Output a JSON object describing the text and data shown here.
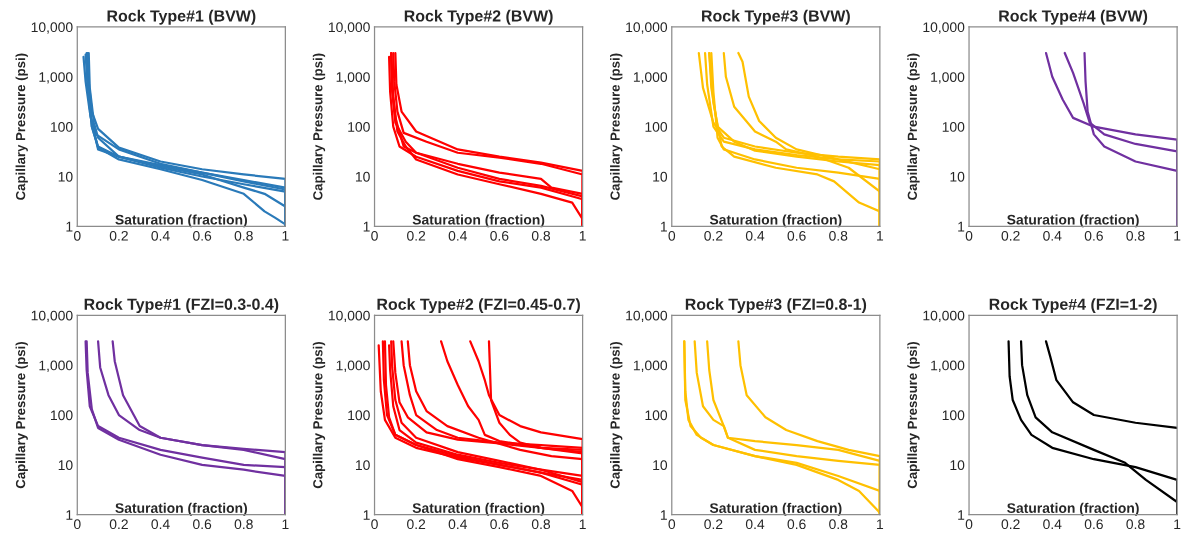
{
  "chart_data": [
    {
      "type": "line",
      "title": "Rock Type#1 (BVW)",
      "xlabel": "Saturation (fraction)",
      "ylabel": "Capillary Pressure (psi)",
      "log": "y",
      "xlim": [
        0,
        1
      ],
      "ylim": [
        1,
        10000
      ],
      "xticks": [
        0,
        0.2,
        0.4,
        0.6,
        0.8,
        1
      ],
      "yticks": [
        {
          "value": 1,
          "label": "1"
        },
        {
          "value": 10,
          "label": "10"
        },
        {
          "value": 100,
          "label": "100"
        },
        {
          "value": 1000,
          "label": "1,000"
        },
        {
          "value": 10000,
          "label": "10,000"
        }
      ],
      "series": [
        {
          "color": "#2a7ab9",
          "x": [
            0.05,
            0.055,
            0.07,
            0.1,
            0.2,
            0.4,
            0.6,
            0.8,
            1,
            1
          ],
          "values": [
            3000,
            800,
            200,
            90,
            38,
            20,
            14,
            11,
            9,
            1
          ]
        },
        {
          "color": "#2a7ab9",
          "x": [
            0.045,
            0.05,
            0.065,
            0.09,
            0.2,
            0.4,
            0.6,
            0.8,
            1,
            1
          ],
          "values": [
            3000,
            700,
            150,
            70,
            35,
            18,
            12,
            8.5,
            6,
            1
          ]
        },
        {
          "color": "#2a7ab9",
          "x": [
            0.055,
            0.06,
            0.08,
            0.1,
            0.2,
            0.4,
            0.6,
            0.8,
            1,
            1
          ],
          "values": [
            3000,
            600,
            120,
            60,
            25,
            17,
            12,
            8,
            5.5,
            1
          ]
        },
        {
          "color": "#2a7ab9",
          "x": [
            0.05,
            0.055,
            0.07,
            0.1,
            0.2,
            0.4,
            0.6,
            0.8,
            1,
            1
          ],
          "values": [
            3000,
            500,
            100,
            40,
            25,
            15,
            10,
            7,
            5,
            1
          ]
        },
        {
          "color": "#2a7ab9",
          "x": [
            0.03,
            0.04,
            0.06,
            0.1,
            0.2,
            0.4,
            0.6,
            0.8,
            0.9,
            1,
            1
          ],
          "values": [
            2500,
            800,
            200,
            35,
            25,
            16,
            11,
            6,
            4.5,
            2.5,
            1
          ]
        },
        {
          "color": "#2a7ab9",
          "x": [
            0.04,
            0.05,
            0.07,
            0.1,
            0.2,
            0.4,
            0.6,
            0.8,
            0.9,
            0.95,
            1
          ],
          "values": [
            2800,
            600,
            100,
            38,
            22,
            14,
            8.5,
            4.5,
            2,
            1.5,
            1.1
          ]
        }
      ]
    },
    {
      "type": "line",
      "title": "Rock Type#2 (BVW)",
      "xlabel": "Saturation (fraction)",
      "ylabel": "Capillary Pressure (psi)",
      "log": "y",
      "xlim": [
        0,
        1
      ],
      "ylim": [
        1,
        10000
      ],
      "xticks": [
        0,
        0.2,
        0.4,
        0.6,
        0.8,
        1
      ],
      "yticks": [
        {
          "value": 1,
          "label": "1"
        },
        {
          "value": 10,
          "label": "10"
        },
        {
          "value": 100,
          "label": "100"
        },
        {
          "value": 1000,
          "label": "1,000"
        },
        {
          "value": 10000,
          "label": "10,000"
        }
      ],
      "series": [
        {
          "color": "#ff0000",
          "x": [
            0.1,
            0.105,
            0.13,
            0.2,
            0.4,
            0.6,
            0.8,
            1,
            1
          ],
          "values": [
            3000,
            700,
            200,
            80,
            35,
            25,
            19,
            13,
            1
          ]
        },
        {
          "color": "#ff0000",
          "x": [
            0.09,
            0.095,
            0.11,
            0.14,
            0.25,
            0.4,
            0.6,
            0.8,
            1,
            1
          ],
          "values": [
            3000,
            800,
            200,
            75,
            50,
            30,
            24,
            18,
            11,
            1
          ]
        },
        {
          "color": "#ff0000",
          "x": [
            0.08,
            0.085,
            0.1,
            0.14,
            0.2,
            0.4,
            0.6,
            0.8,
            0.85,
            1,
            1
          ],
          "values": [
            3000,
            600,
            150,
            40,
            30,
            18,
            12,
            9,
            6,
            4.5,
            1
          ]
        },
        {
          "color": "#ff0000",
          "x": [
            0.08,
            0.085,
            0.1,
            0.15,
            0.2,
            0.4,
            0.6,
            0.8,
            1,
            1
          ],
          "values": [
            3000,
            500,
            120,
            50,
            30,
            15,
            9,
            6.5,
            4,
            1
          ]
        },
        {
          "color": "#ff0000",
          "x": [
            0.07,
            0.075,
            0.09,
            0.12,
            0.2,
            0.4,
            0.6,
            0.8,
            1,
            1
          ],
          "values": [
            2500,
            500,
            100,
            40,
            25,
            13,
            8,
            6,
            3.5,
            1
          ]
        },
        {
          "color": "#ff0000",
          "x": [
            0.08,
            0.09,
            0.11,
            0.15,
            0.2,
            0.4,
            0.6,
            0.8,
            0.95,
            1,
            1
          ],
          "values": [
            2800,
            400,
            80,
            40,
            22,
            11,
            7,
            4.5,
            3,
            1.4,
            1
          ]
        }
      ]
    },
    {
      "type": "line",
      "title": "Rock Type#3 (BVW)",
      "xlabel": "Saturation (fraction)",
      "ylabel": "Capillary Pressure (psi)",
      "log": "y",
      "xlim": [
        0,
        1
      ],
      "ylim": [
        1,
        10000
      ],
      "xticks": [
        0,
        0.2,
        0.4,
        0.6,
        0.8,
        1
      ],
      "yticks": [
        {
          "value": 1,
          "label": "1"
        },
        {
          "value": 10,
          "label": "10"
        },
        {
          "value": 100,
          "label": "100"
        },
        {
          "value": 1000,
          "label": "1,000"
        },
        {
          "value": 10000,
          "label": "10,000"
        }
      ],
      "series": [
        {
          "color": "#ffc000",
          "x": [
            0.13,
            0.15,
            0.2,
            0.25,
            0.4,
            0.6,
            0.8,
            1,
            1
          ],
          "values": [
            3000,
            600,
            120,
            60,
            40,
            30,
            25,
            22,
            1
          ]
        },
        {
          "color": "#ffc000",
          "x": [
            0.16,
            0.17,
            0.2,
            0.25,
            0.4,
            0.6,
            0.8,
            1,
            1
          ],
          "values": [
            3000,
            700,
            100,
            50,
            35,
            27,
            22,
            20,
            1
          ]
        },
        {
          "color": "#ffc000",
          "x": [
            0.18,
            0.19,
            0.22,
            0.3,
            0.4,
            0.6,
            0.8,
            1,
            1
          ],
          "values": [
            3000,
            600,
            100,
            50,
            33,
            25,
            20,
            17,
            1
          ]
        },
        {
          "color": "#ffc000",
          "x": [
            0.19,
            0.2,
            0.22,
            0.25,
            0.3,
            0.4,
            0.6,
            0.8,
            1,
            1
          ],
          "values": [
            3000,
            500,
            60,
            35,
            30,
            22,
            15,
            12,
            9,
            1
          ]
        },
        {
          "color": "#ffc000",
          "x": [
            0.25,
            0.26,
            0.3,
            0.4,
            0.5,
            0.55,
            0.7,
            0.85,
            1,
            1
          ],
          "values": [
            3000,
            1000,
            250,
            80,
            50,
            35,
            25,
            15,
            5,
            1
          ]
        },
        {
          "color": "#ffc000",
          "x": [
            0.32,
            0.34,
            0.37,
            0.42,
            0.5,
            0.6,
            0.8,
            1,
            1
          ],
          "values": [
            3000,
            2000,
            400,
            130,
            60,
            35,
            22,
            14,
            1
          ]
        },
        {
          "color": "#ffc000",
          "x": [
            0.18,
            0.2,
            0.24,
            0.3,
            0.5,
            0.7,
            0.78,
            0.9,
            1,
            1
          ],
          "values": [
            3000,
            300,
            40,
            25,
            15,
            11,
            8,
            3,
            2,
            1
          ]
        }
      ]
    },
    {
      "type": "line",
      "title": "Rock Type#4 (BVW)",
      "xlabel": "Saturation (fraction)",
      "ylabel": "Capillary Pressure (psi)",
      "log": "y",
      "xlim": [
        0,
        1
      ],
      "ylim": [
        1,
        10000
      ],
      "xticks": [
        0,
        0.2,
        0.4,
        0.6,
        0.8,
        1
      ],
      "yticks": [
        {
          "value": 1,
          "label": "1"
        },
        {
          "value": 10,
          "label": "10"
        },
        {
          "value": 100,
          "label": "100"
        },
        {
          "value": 1000,
          "label": "1,000"
        },
        {
          "value": 10000,
          "label": "10,000"
        }
      ],
      "series": [
        {
          "color": "#7030a0",
          "x": [
            0.37,
            0.4,
            0.45,
            0.5,
            0.6,
            0.8,
            1,
            1
          ],
          "values": [
            3000,
            1000,
            350,
            150,
            100,
            70,
            55,
            1
          ]
        },
        {
          "color": "#7030a0",
          "x": [
            0.46,
            0.5,
            0.55,
            0.58,
            0.65,
            0.8,
            1,
            1
          ],
          "values": [
            3000,
            1200,
            300,
            120,
            70,
            45,
            32,
            1
          ]
        },
        {
          "color": "#7030a0",
          "x": [
            0.555,
            0.56,
            0.57,
            0.6,
            0.65,
            0.8,
            1,
            1
          ],
          "values": [
            3000,
            800,
            200,
            70,
            40,
            20,
            13,
            1
          ]
        }
      ]
    },
    {
      "type": "line",
      "title": "Rock Type#1 (FZI=0.3-0.4)",
      "xlabel": "Saturation (fraction)",
      "ylabel": "Capillary Pressure (psi)",
      "log": "y",
      "xlim": [
        0,
        1
      ],
      "ylim": [
        1,
        10000
      ],
      "xticks": [
        0,
        0.2,
        0.4,
        0.6,
        0.8,
        1
      ],
      "yticks": [
        {
          "value": 1,
          "label": "1"
        },
        {
          "value": 10,
          "label": "10"
        },
        {
          "value": 100,
          "label": "100"
        },
        {
          "value": 1000,
          "label": "1,000"
        },
        {
          "value": 10000,
          "label": "10,000"
        }
      ],
      "series": [
        {
          "color": "#7030a0",
          "x": [
            0.04,
            0.045,
            0.06,
            0.1,
            0.2,
            0.4,
            0.6,
            0.8,
            1,
            1
          ],
          "values": [
            3000,
            800,
            150,
            60,
            35,
            20,
            14,
            10,
            9,
            1
          ]
        },
        {
          "color": "#7030a0",
          "x": [
            0.045,
            0.05,
            0.07,
            0.1,
            0.2,
            0.4,
            0.6,
            0.8,
            1,
            1
          ],
          "values": [
            3000,
            700,
            130,
            55,
            32,
            16,
            10,
            8,
            6,
            1
          ]
        },
        {
          "color": "#7030a0",
          "x": [
            0.1,
            0.11,
            0.15,
            0.2,
            0.3,
            0.4,
            0.6,
            0.8,
            1,
            1
          ],
          "values": [
            3000,
            900,
            250,
            100,
            50,
            35,
            25,
            20,
            13,
            1
          ]
        },
        {
          "color": "#7030a0",
          "x": [
            0.17,
            0.18,
            0.22,
            0.3,
            0.4,
            0.6,
            0.8,
            1,
            1
          ],
          "values": [
            3000,
            1200,
            250,
            60,
            35,
            25,
            21,
            18,
            1
          ]
        }
      ]
    },
    {
      "type": "line",
      "title": "Rock Type#2 (FZI=0.45-0.7)",
      "xlabel": "Saturation (fraction)",
      "ylabel": "Capillary Pressure (psi)",
      "log": "y",
      "xlim": [
        0,
        1
      ],
      "ylim": [
        1,
        10000
      ],
      "xticks": [
        0,
        0.2,
        0.4,
        0.6,
        0.8,
        1
      ],
      "yticks": [
        {
          "value": 1,
          "label": "1"
        },
        {
          "value": 10,
          "label": "10"
        },
        {
          "value": 100,
          "label": "100"
        },
        {
          "value": 1000,
          "label": "1,000"
        },
        {
          "value": 10000,
          "label": "10,000"
        }
      ],
      "series": [
        {
          "color": "#ff0000",
          "x": [
            0.02,
            0.03,
            0.05,
            0.1,
            0.2,
            0.4,
            0.6,
            0.8,
            1,
            1
          ],
          "values": [
            2500,
            300,
            80,
            35,
            22,
            14,
            10,
            7,
            5,
            1
          ]
        },
        {
          "color": "#ff0000",
          "x": [
            0.04,
            0.045,
            0.06,
            0.1,
            0.2,
            0.4,
            0.6,
            0.8,
            1,
            1
          ],
          "values": [
            3000,
            500,
            100,
            40,
            25,
            15,
            10,
            7,
            4,
            1
          ]
        },
        {
          "color": "#ff0000",
          "x": [
            0.05,
            0.055,
            0.07,
            0.1,
            0.2,
            0.4,
            0.6,
            0.8,
            0.95,
            1,
            1
          ],
          "values": [
            3000,
            400,
            90,
            40,
            25,
            13,
            9,
            6,
            3,
            1.4,
            1
          ]
        },
        {
          "color": "#ff0000",
          "x": [
            0.07,
            0.075,
            0.09,
            0.12,
            0.2,
            0.4,
            0.6,
            0.8,
            1,
            1
          ],
          "values": [
            2500,
            800,
            150,
            50,
            28,
            16,
            11,
            8,
            6,
            1
          ]
        },
        {
          "color": "#ff0000",
          "x": [
            0.08,
            0.085,
            0.1,
            0.13,
            0.2,
            0.4,
            0.6,
            0.8,
            1,
            1
          ],
          "values": [
            3000,
            900,
            200,
            70,
            35,
            18,
            12,
            8,
            4.5,
            1
          ]
        },
        {
          "color": "#ff0000",
          "x": [
            0.09,
            0.1,
            0.12,
            0.16,
            0.25,
            0.4,
            0.6,
            0.8,
            1,
            1
          ],
          "values": [
            3000,
            700,
            180,
            90,
            45,
            32,
            27,
            22,
            18,
            1
          ]
        },
        {
          "color": "#ff0000",
          "x": [
            0.13,
            0.14,
            0.17,
            0.2,
            0.3,
            0.4,
            0.6,
            0.8,
            1,
            1
          ],
          "values": [
            3000,
            1000,
            250,
            100,
            50,
            35,
            28,
            25,
            22,
            1
          ]
        },
        {
          "color": "#ff0000",
          "x": [
            0.16,
            0.17,
            0.2,
            0.25,
            0.35,
            0.5,
            0.7,
            0.85,
            1,
            1
          ],
          "values": [
            3000,
            1000,
            300,
            120,
            60,
            35,
            20,
            15,
            13,
            1
          ]
        },
        {
          "color": "#ff0000",
          "x": [
            0.32,
            0.35,
            0.4,
            0.45,
            0.5,
            0.53,
            0.6,
            0.8,
            1,
            1
          ],
          "values": [
            3000,
            1200,
            400,
            150,
            80,
            40,
            30,
            22,
            20,
            1
          ]
        },
        {
          "color": "#ff0000",
          "x": [
            0.46,
            0.5,
            0.53,
            0.55,
            0.6,
            0.7,
            0.8,
            1,
            1
          ],
          "values": [
            3000,
            1200,
            500,
            250,
            100,
            60,
            45,
            33,
            1
          ]
        },
        {
          "color": "#ff0000",
          "x": [
            0.55,
            0.555,
            0.56,
            0.6,
            0.65,
            0.7,
            0.8,
            1,
            1
          ],
          "values": [
            3000,
            800,
            200,
            70,
            40,
            28,
            22,
            17,
            1
          ]
        }
      ]
    },
    {
      "type": "line",
      "title": "Rock Type#3 (FZI=0.8-1)",
      "xlabel": "Saturation (fraction)",
      "ylabel": "Capillary Pressure (psi)",
      "log": "y",
      "xlim": [
        0,
        1
      ],
      "ylim": [
        1,
        10000
      ],
      "xticks": [
        0,
        0.2,
        0.4,
        0.6,
        0.8,
        1
      ],
      "yticks": [
        {
          "value": 1,
          "label": "1"
        },
        {
          "value": 10,
          "label": "10"
        },
        {
          "value": 100,
          "label": "100"
        },
        {
          "value": 1000,
          "label": "1,000"
        },
        {
          "value": 10000,
          "label": "10,000"
        }
      ],
      "series": [
        {
          "color": "#ffc000",
          "x": [
            0.06,
            0.065,
            0.08,
            0.12,
            0.2,
            0.4,
            0.6,
            0.8,
            0.9,
            1,
            1
          ],
          "values": [
            3000,
            300,
            80,
            40,
            25,
            15,
            10,
            5,
            3,
            1.1,
            1
          ]
        },
        {
          "color": "#ffc000",
          "x": [
            0.06,
            0.065,
            0.09,
            0.14,
            0.2,
            0.4,
            0.6,
            0.8,
            1,
            1
          ],
          "values": [
            3000,
            200,
            60,
            35,
            25,
            15,
            11,
            6,
            3,
            1
          ]
        },
        {
          "color": "#ffc000",
          "x": [
            0.11,
            0.12,
            0.15,
            0.2,
            0.25,
            0.27,
            0.4,
            0.6,
            0.8,
            1,
            1
          ],
          "values": [
            3000,
            700,
            150,
            80,
            60,
            35,
            30,
            25,
            20,
            12,
            1
          ]
        },
        {
          "color": "#ffc000",
          "x": [
            0.17,
            0.18,
            0.2,
            0.25,
            0.27,
            0.4,
            0.6,
            0.8,
            1,
            1
          ],
          "values": [
            3000,
            800,
            200,
            60,
            35,
            20,
            15,
            12,
            10,
            1
          ]
        },
        {
          "color": "#ffc000",
          "x": [
            0.32,
            0.33,
            0.36,
            0.45,
            0.55,
            0.7,
            0.85,
            1,
            1
          ],
          "values": [
            3000,
            1000,
            250,
            90,
            50,
            30,
            20,
            15,
            1
          ]
        }
      ]
    },
    {
      "type": "line",
      "title": "Rock Type#4 (FZI=1-2)",
      "xlabel": "Saturation (fraction)",
      "ylabel": "Capillary Pressure (psi)",
      "log": "y",
      "xlim": [
        0,
        1
      ],
      "ylim": [
        1,
        10000
      ],
      "xticks": [
        0,
        0.2,
        0.4,
        0.6,
        0.8,
        1
      ],
      "yticks": [
        {
          "value": 1,
          "label": "1"
        },
        {
          "value": 10,
          "label": "10"
        },
        {
          "value": 100,
          "label": "100"
        },
        {
          "value": 1000,
          "label": "1,000"
        },
        {
          "value": 10000,
          "label": "10,000"
        }
      ],
      "series": [
        {
          "color": "#000000",
          "x": [
            0.19,
            0.195,
            0.21,
            0.25,
            0.3,
            0.4,
            0.6,
            0.8,
            1,
            1
          ],
          "values": [
            3000,
            600,
            200,
            80,
            40,
            22,
            13,
            9,
            5,
            1
          ]
        },
        {
          "color": "#000000",
          "x": [
            0.25,
            0.255,
            0.28,
            0.32,
            0.4,
            0.6,
            0.75,
            0.85,
            1,
            1
          ],
          "values": [
            3000,
            1000,
            250,
            90,
            45,
            20,
            11,
            5,
            1.8,
            1
          ]
        },
        {
          "color": "#000000",
          "x": [
            0.37,
            0.39,
            0.42,
            0.5,
            0.6,
            0.8,
            1
          ],
          "values": [
            3000,
            1500,
            500,
            180,
            100,
            70,
            55
          ]
        }
      ]
    }
  ]
}
